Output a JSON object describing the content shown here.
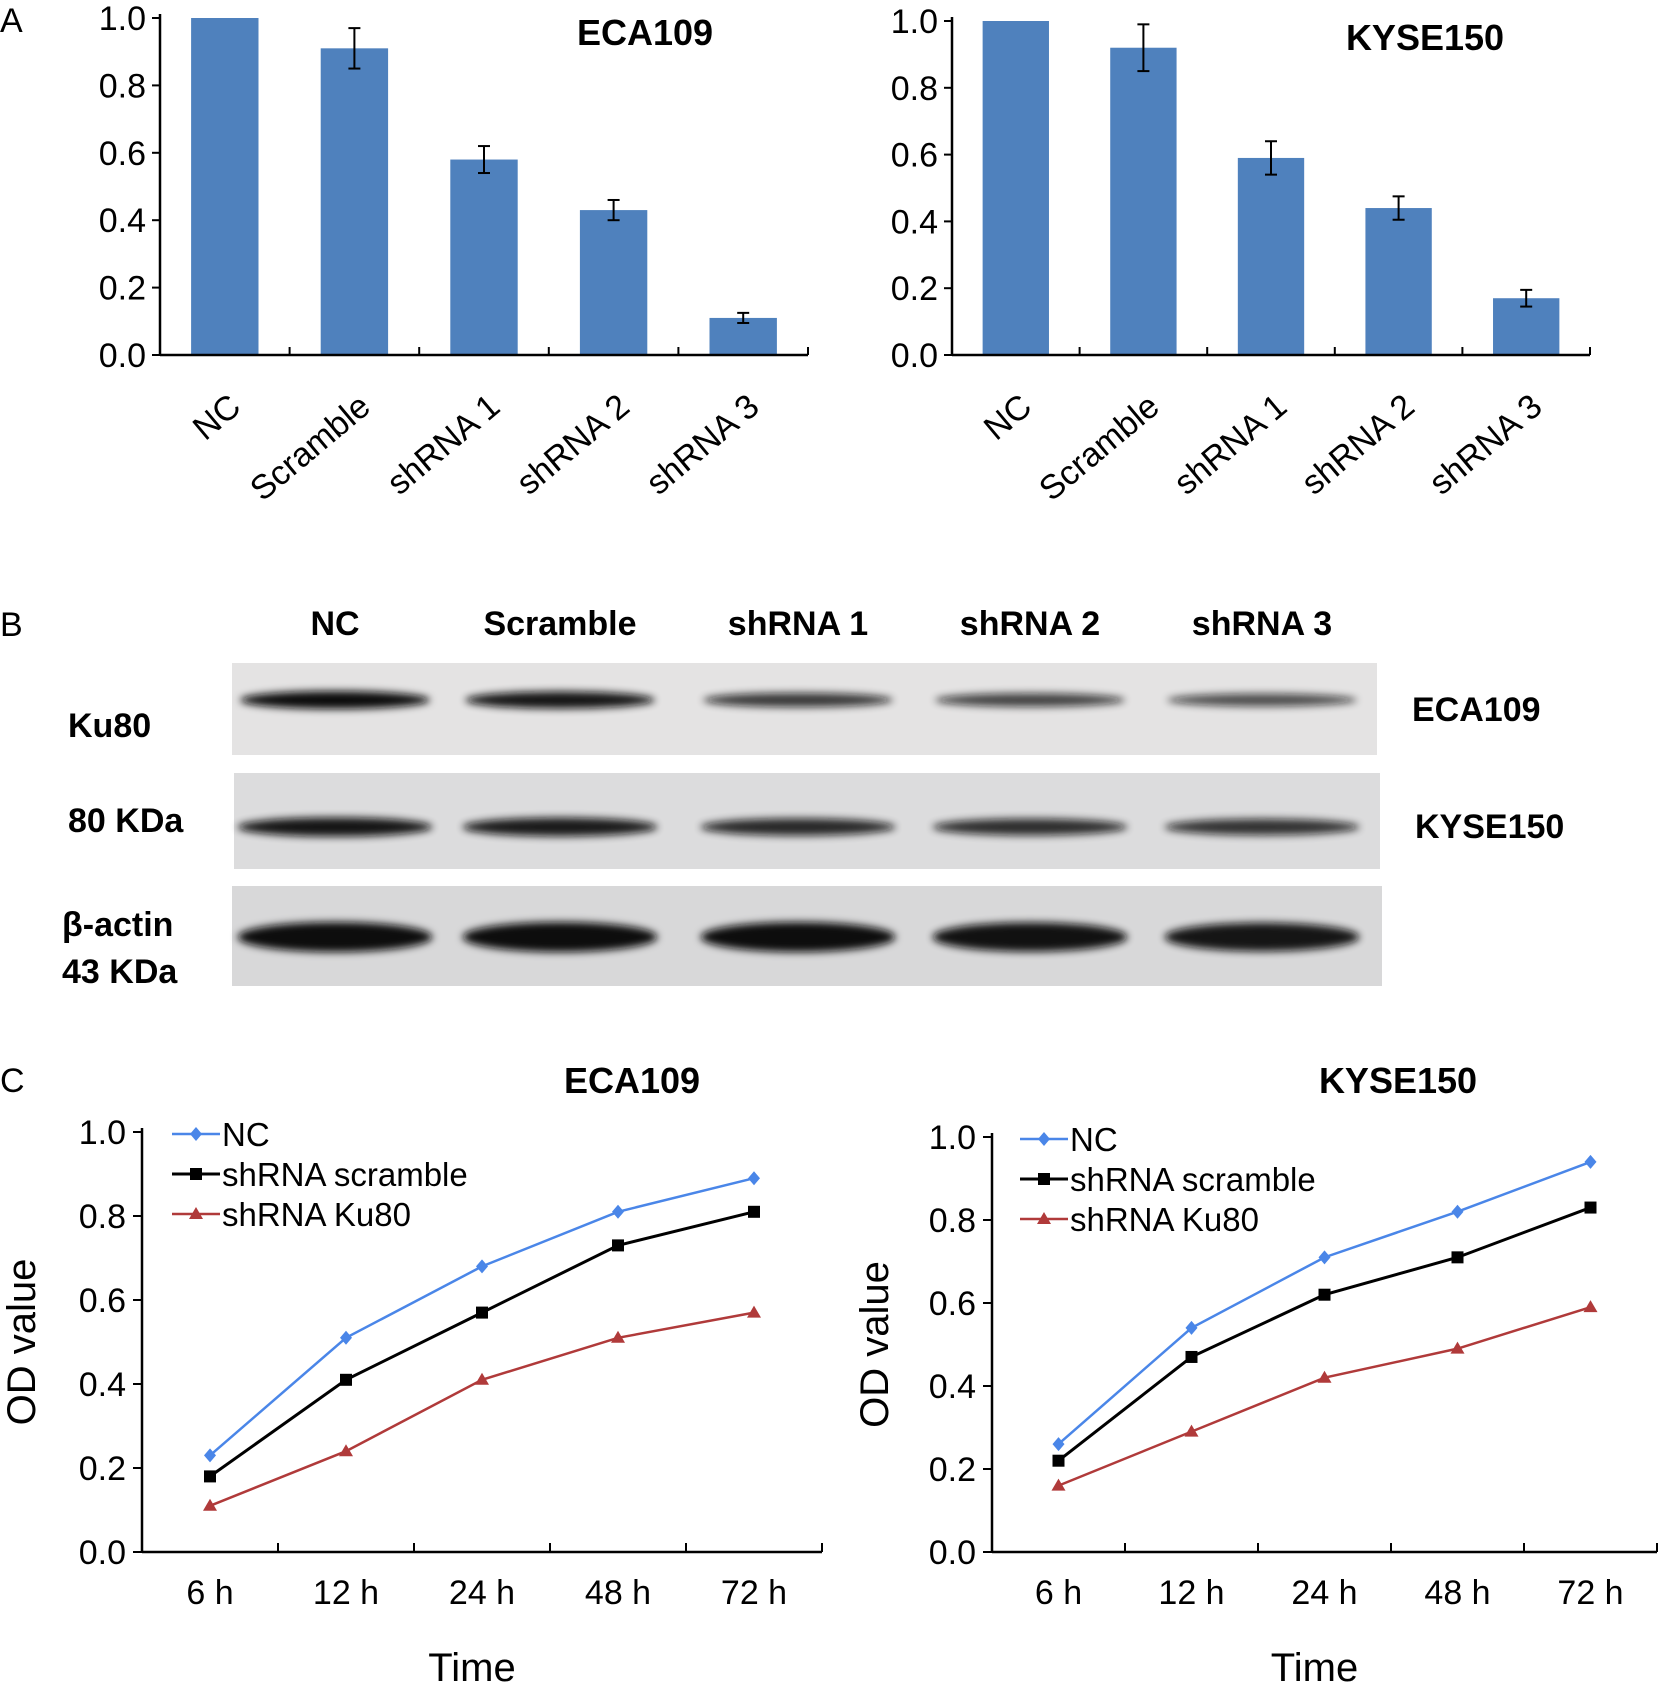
{
  "panel_letters": {
    "a": "A",
    "b": "B",
    "c": "C"
  },
  "panel_a": {
    "charts": [
      {
        "title": "ECA109",
        "categories": [
          "NC",
          "Scramble",
          "shRNA 1",
          "shRNA 2",
          "shRNA 3"
        ],
        "values": [
          1.0,
          0.91,
          0.58,
          0.43,
          0.11
        ],
        "errors": [
          0.0,
          0.06,
          0.04,
          0.03,
          0.015
        ]
      },
      {
        "title": "KYSE150",
        "categories": [
          "NC",
          "Scramble",
          "shRNA 1",
          "shRNA 2",
          "shRNA 3"
        ],
        "values": [
          1.0,
          0.92,
          0.59,
          0.44,
          0.17
        ],
        "errors": [
          0.0,
          0.07,
          0.05,
          0.035,
          0.025
        ]
      }
    ],
    "y_ticks": [
      "0.0",
      "0.2",
      "0.4",
      "0.6",
      "0.8",
      "1.0"
    ],
    "bar_color": "#4f81bd"
  },
  "panel_b": {
    "lanes": [
      "NC",
      "Scramble",
      "shRNA 1",
      "shRNA 2",
      "shRNA 3"
    ],
    "left_labels": [
      "Ku80",
      "80 KDa",
      "β-actin",
      "43 KDa"
    ],
    "right_labels": [
      "ECA109",
      "KYSE150"
    ],
    "band_intensity": {
      "ECA109_Ku80": [
        1.0,
        0.9,
        0.55,
        0.45,
        0.35
      ],
      "KYSE150_Ku80": [
        0.9,
        0.85,
        0.7,
        0.65,
        0.6
      ],
      "beta_actin": [
        1.0,
        1.0,
        1.0,
        0.95,
        0.9
      ]
    }
  },
  "panel_c": {
    "charts": [
      {
        "title": "ECA109",
        "ylabel": "OD  value",
        "xlabel": "Time",
        "categories": [
          "6 h",
          "12 h",
          "24 h",
          "48 h",
          "72 h"
        ],
        "series": [
          {
            "name": "NC",
            "values": [
              0.23,
              0.51,
              0.68,
              0.81,
              0.89
            ],
            "color": "#4a86e8",
            "marker": "diamond"
          },
          {
            "name": "shRNA scramble",
            "values": [
              0.18,
              0.41,
              0.57,
              0.73,
              0.81
            ],
            "color": "#000000",
            "marker": "square"
          },
          {
            "name": "shRNA Ku80",
            "values": [
              0.11,
              0.24,
              0.41,
              0.51,
              0.57
            ],
            "color": "#b03a3a",
            "marker": "triangle"
          }
        ]
      },
      {
        "title": "KYSE150",
        "ylabel": "OD  value",
        "xlabel": "Time",
        "categories": [
          "6 h",
          "12 h",
          "24 h",
          "48 h",
          "72 h"
        ],
        "series": [
          {
            "name": "NC",
            "values": [
              0.26,
              0.54,
              0.71,
              0.82,
              0.94
            ],
            "color": "#4a86e8",
            "marker": "diamond"
          },
          {
            "name": "shRNA scramble",
            "values": [
              0.22,
              0.47,
              0.62,
              0.71,
              0.83
            ],
            "color": "#000000",
            "marker": "square"
          },
          {
            "name": "shRNA Ku80",
            "values": [
              0.16,
              0.29,
              0.42,
              0.49,
              0.59
            ],
            "color": "#b03a3a",
            "marker": "triangle"
          }
        ]
      }
    ],
    "y_ticks": [
      "0.0",
      "0.2",
      "0.4",
      "0.6",
      "0.8",
      "1.0"
    ]
  },
  "chart_data": [
    {
      "type": "bar",
      "title": "ECA109",
      "categories": [
        "NC",
        "Scramble",
        "shRNA 1",
        "shRNA 2",
        "shRNA 3"
      ],
      "values": [
        1.0,
        0.91,
        0.58,
        0.43,
        0.11
      ],
      "errors": [
        0.0,
        0.06,
        0.04,
        0.03,
        0.015
      ],
      "ylim": [
        0,
        1.0
      ],
      "xlabel": "",
      "ylabel": ""
    },
    {
      "type": "bar",
      "title": "KYSE150",
      "categories": [
        "NC",
        "Scramble",
        "shRNA 1",
        "shRNA 2",
        "shRNA 3"
      ],
      "values": [
        1.0,
        0.92,
        0.59,
        0.44,
        0.17
      ],
      "errors": [
        0.0,
        0.07,
        0.05,
        0.035,
        0.025
      ],
      "ylim": [
        0,
        1.0
      ],
      "xlabel": "",
      "ylabel": ""
    },
    {
      "type": "line",
      "title": "ECA109",
      "categories": [
        "6 h",
        "12 h",
        "24 h",
        "48 h",
        "72 h"
      ],
      "series": [
        {
          "name": "NC",
          "values": [
            0.23,
            0.51,
            0.68,
            0.81,
            0.89
          ]
        },
        {
          "name": "shRNA scramble",
          "values": [
            0.18,
            0.41,
            0.57,
            0.73,
            0.81
          ]
        },
        {
          "name": "shRNA Ku80",
          "values": [
            0.11,
            0.24,
            0.41,
            0.51,
            0.57
          ]
        }
      ],
      "xlabel": "Time",
      "ylabel": "OD  value",
      "ylim": [
        0,
        1.0
      ]
    },
    {
      "type": "line",
      "title": "KYSE150",
      "categories": [
        "6 h",
        "12 h",
        "24 h",
        "48 h",
        "72 h"
      ],
      "series": [
        {
          "name": "NC",
          "values": [
            0.26,
            0.54,
            0.71,
            0.82,
            0.94
          ]
        },
        {
          "name": "shRNA scramble",
          "values": [
            0.22,
            0.47,
            0.62,
            0.71,
            0.83
          ]
        },
        {
          "name": "shRNA Ku80",
          "values": [
            0.16,
            0.29,
            0.42,
            0.49,
            0.59
          ]
        }
      ],
      "xlabel": "Time",
      "ylabel": "OD  value",
      "ylim": [
        0,
        1.0
      ]
    }
  ]
}
